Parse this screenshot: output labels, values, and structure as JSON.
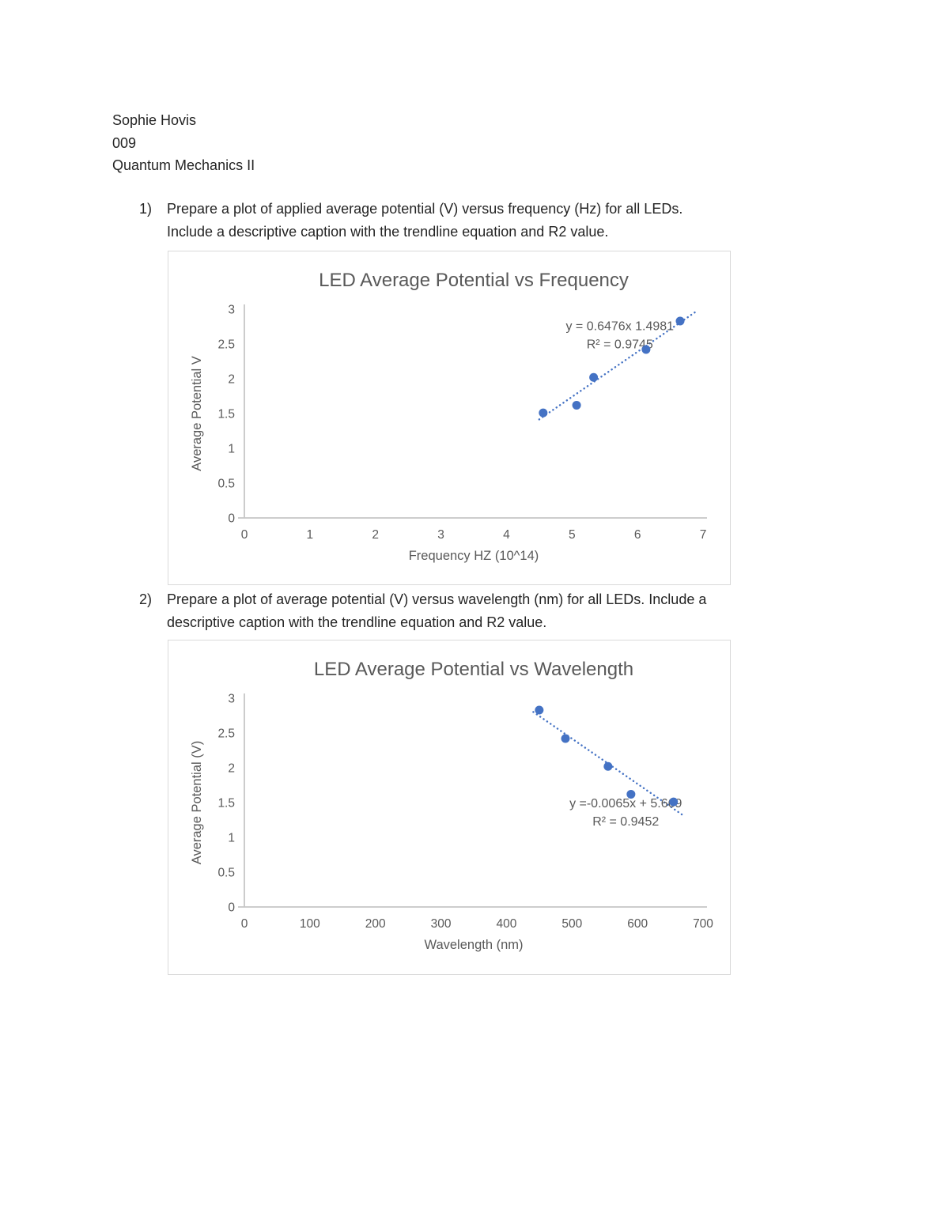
{
  "header": {
    "author": "Sophie Hovis",
    "section": "009",
    "course": "Quantum Mechanics II"
  },
  "questions": [
    {
      "number": "1)",
      "text_lines": [
        "Prepare a plot of applied average potential (V) versus frequency (Hz) for all LEDs.",
        "Include a descriptive caption with the trendline equation and R2 value."
      ]
    },
    {
      "number": "2)",
      "text_lines": [
        "Prepare a plot of average potential (V) versus wavelength (nm) for all LEDs. Include a",
        "descriptive caption with the trendline equation and R2 value."
      ]
    }
  ],
  "colors": {
    "body_text": "#242424",
    "frame_border": "#d9d9d9",
    "page_bg": "#ffffff",
    "accent_blue": "#4472C4",
    "chart_gray": "#595959",
    "axis_gray": "#c6c6c6"
  },
  "chart_data": [
    {
      "type": "scatter",
      "title": "LED Average Potential vs Frequency",
      "xlabel": "Frequency HZ (10^14)",
      "ylabel": "Average Potential V",
      "xlim": [
        0,
        7
      ],
      "ylim": [
        0,
        3
      ],
      "x_ticks": [
        0,
        1,
        2,
        3,
        4,
        5,
        6,
        7
      ],
      "y_ticks": [
        0,
        0.5,
        1,
        1.5,
        2,
        2.5,
        3
      ],
      "grid": false,
      "legend": "none",
      "points": [
        {
          "x": 4.56,
          "y": 1.51
        },
        {
          "x": 5.07,
          "y": 1.62
        },
        {
          "x": 5.33,
          "y": 2.02
        },
        {
          "x": 6.13,
          "y": 2.42
        },
        {
          "x": 6.65,
          "y": 2.83
        }
      ],
      "trendline": {
        "slope": 0.6476,
        "intercept": -1.4981,
        "x_start": 4.5,
        "x_end": 6.9,
        "style": "dotted"
      },
      "equation_lines": [
        "y = 0.6476x 1.4981",
        "R² = 0.9745"
      ],
      "equation_anchor": {
        "x": 5.73,
        "y": 2.7
      },
      "point_color": "#4472C4",
      "trendline_color": "#4472C4",
      "text_color": "#595959",
      "axis_color": "#c6c6c6"
    },
    {
      "type": "scatter",
      "title": "LED Average Potential vs Wavelength",
      "xlabel": "Wavelength (nm)",
      "ylabel": "Average Potential (V)",
      "xlim": [
        0,
        700
      ],
      "ylim": [
        0,
        3
      ],
      "x_ticks": [
        0,
        100,
        200,
        300,
        400,
        500,
        600,
        700
      ],
      "y_ticks": [
        0,
        0.5,
        1,
        1.5,
        2,
        2.5,
        3
      ],
      "grid": false,
      "legend": "none",
      "points": [
        {
          "x": 450,
          "y": 2.83
        },
        {
          "x": 490,
          "y": 2.42
        },
        {
          "x": 555,
          "y": 2.02
        },
        {
          "x": 590,
          "y": 1.62
        },
        {
          "x": 655,
          "y": 1.51
        }
      ],
      "trendline": {
        "slope": -0.0065,
        "intercept": 5.669,
        "x_start": 441,
        "x_end": 668,
        "style": "dotted"
      },
      "equation_lines": [
        "y =-0.0065x + 5.669",
        "R² = 0.9452"
      ],
      "equation_anchor": {
        "x": 582,
        "y": 1.43
      },
      "point_color": "#4472C4",
      "trendline_color": "#4472C4",
      "text_color": "#595959",
      "axis_color": "#c6c6c6"
    }
  ]
}
